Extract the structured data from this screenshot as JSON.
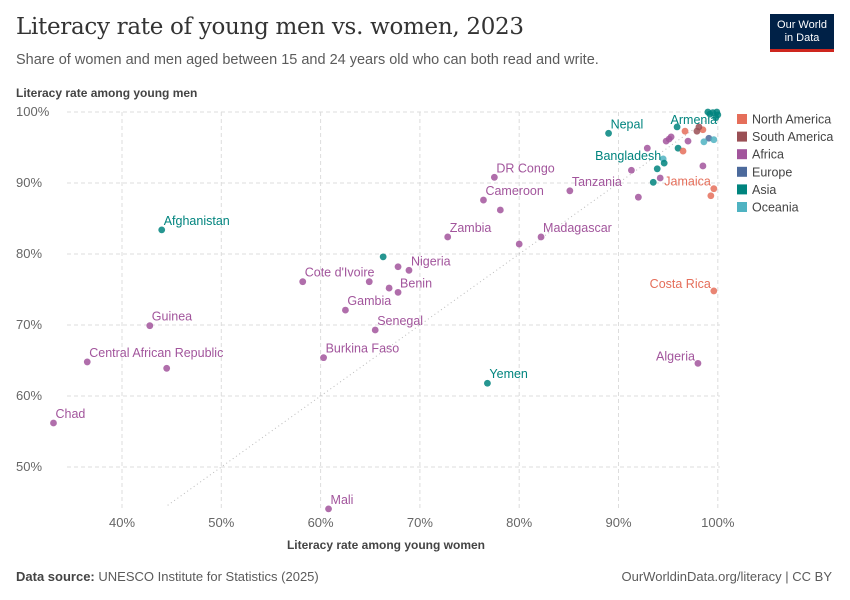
{
  "header": {
    "title": "Literacy rate of young men vs. women, 2023",
    "subtitle": "Share of women and men aged between 15 and 24 years old who can both read and write.",
    "logo_line1": "Our World",
    "logo_line2": "in Data"
  },
  "footer": {
    "source_label": "Data source:",
    "source": "UNESCO Institute for Statistics (2025)",
    "right": "OurWorldinData.org/literacy | CC BY"
  },
  "chart_data": {
    "type": "scatter",
    "title": "Literacy rate of young men vs. women, 2023",
    "xlabel": "Literacy rate among young women",
    "ylabel": "Literacy rate among young men",
    "xlim": [
      32.5,
      101
    ],
    "ylim": [
      44,
      100
    ],
    "x_ticks": [
      {
        "v": 40,
        "label": "40%"
      },
      {
        "v": 50,
        "label": "50%"
      },
      {
        "v": 60,
        "label": "60%"
      },
      {
        "v": 70,
        "label": "70%"
      },
      {
        "v": 80,
        "label": "80%"
      },
      {
        "v": 90,
        "label": "90%"
      },
      {
        "v": 100,
        "label": "100%"
      }
    ],
    "y_ticks": [
      {
        "v": 50,
        "label": "50%"
      },
      {
        "v": 60,
        "label": "60%"
      },
      {
        "v": 70,
        "label": "70%"
      },
      {
        "v": 80,
        "label": "80%"
      },
      {
        "v": 90,
        "label": "90%"
      },
      {
        "v": 100,
        "label": "100%"
      }
    ],
    "grid": true,
    "reference_line": "y = x",
    "legend_position": "right",
    "legend": [
      {
        "name": "North America",
        "color": "#e56e5a"
      },
      {
        "name": "South America",
        "color": "#9a4f55"
      },
      {
        "name": "Africa",
        "color": "#a2559c"
      },
      {
        "name": "Europe",
        "color": "#4c6a9c"
      },
      {
        "name": "Asia",
        "color": "#00847e"
      },
      {
        "name": "Oceania",
        "color": "#4fb3c2"
      }
    ],
    "points": [
      {
        "label": "Chad",
        "region": "Africa",
        "x": 33.1,
        "y": 56.2
      },
      {
        "label": "Central African Republic",
        "region": "Africa",
        "x": 36.5,
        "y": 64.8
      },
      {
        "label": "Guinea",
        "region": "Africa",
        "x": 42.8,
        "y": 69.9
      },
      {
        "label": "",
        "region": "Africa",
        "x": 44.5,
        "y": 63.9
      },
      {
        "label": "Afghanistan",
        "region": "Asia",
        "x": 44.0,
        "y": 83.4
      },
      {
        "label": "Cote d'Ivoire",
        "region": "Africa",
        "x": 58.2,
        "y": 76.1
      },
      {
        "label": "Gambia",
        "region": "Africa",
        "x": 62.5,
        "y": 72.1
      },
      {
        "label": "Burkina Faso",
        "region": "Africa",
        "x": 60.3,
        "y": 65.4
      },
      {
        "label": "Senegal",
        "region": "Africa",
        "x": 65.5,
        "y": 69.3
      },
      {
        "label": "Mali",
        "region": "Africa",
        "x": 60.8,
        "y": 44.1
      },
      {
        "label": "",
        "region": "Africa",
        "x": 66.9,
        "y": 75.2
      },
      {
        "label": "Benin",
        "region": "Africa",
        "x": 67.8,
        "y": 74.6
      },
      {
        "label": "",
        "region": "Africa",
        "x": 64.9,
        "y": 76.1
      },
      {
        "label": "",
        "region": "Africa",
        "x": 67.8,
        "y": 78.2
      },
      {
        "label": "Nigeria",
        "region": "Africa",
        "x": 68.9,
        "y": 77.7
      },
      {
        "label": "",
        "region": "Asia",
        "x": 66.3,
        "y": 79.6
      },
      {
        "label": "Zambia",
        "region": "Africa",
        "x": 72.8,
        "y": 82.4
      },
      {
        "label": "Cameroon",
        "region": "Africa",
        "x": 76.4,
        "y": 87.6
      },
      {
        "label": "DR Congo",
        "region": "Africa",
        "x": 77.5,
        "y": 90.8
      },
      {
        "label": "",
        "region": "Africa",
        "x": 78.1,
        "y": 86.2
      },
      {
        "label": "",
        "region": "Africa",
        "x": 80.0,
        "y": 81.4
      },
      {
        "label": "Madagascar",
        "region": "Africa",
        "x": 82.2,
        "y": 82.4
      },
      {
        "label": "Tanzania",
        "region": "Africa",
        "x": 85.1,
        "y": 88.9
      },
      {
        "label": "Yemen",
        "region": "Asia",
        "x": 76.8,
        "y": 61.8
      },
      {
        "label": "Nepal",
        "region": "Asia",
        "x": 89.0,
        "y": 97.0
      },
      {
        "label": "Armenia",
        "region": "Asia",
        "x": 95.9,
        "y": 97.9
      },
      {
        "label": "",
        "region": "North America",
        "x": 96.7,
        "y": 97.3
      },
      {
        "label": "",
        "region": "North America",
        "x": 98.5,
        "y": 97.5
      },
      {
        "label": "",
        "region": "South America",
        "x": 97.9,
        "y": 97.3
      },
      {
        "label": "",
        "region": "South America",
        "x": 98.1,
        "y": 97.9
      },
      {
        "label": "",
        "region": "Asia",
        "x": 99.0,
        "y": 100
      },
      {
        "label": "",
        "region": "Asia",
        "x": 99.5,
        "y": 99.9
      },
      {
        "label": "",
        "region": "Asia",
        "x": 99.9,
        "y": 100
      },
      {
        "label": "",
        "region": "Asia",
        "x": 100,
        "y": 99.6
      },
      {
        "label": "",
        "region": "Asia",
        "x": 99.8,
        "y": 99.2
      },
      {
        "label": "",
        "region": "Asia",
        "x": 99.2,
        "y": 99.7
      },
      {
        "label": "",
        "region": "Africa",
        "x": 92.9,
        "y": 94.9
      },
      {
        "label": "",
        "region": "Africa",
        "x": 94.8,
        "y": 95.9
      },
      {
        "label": "",
        "region": "Africa",
        "x": 95.1,
        "y": 96.2
      },
      {
        "label": "",
        "region": "Africa",
        "x": 95.3,
        "y": 96.5
      },
      {
        "label": "",
        "region": "Africa",
        "x": 97.0,
        "y": 95.9
      },
      {
        "label": "",
        "region": "Asia",
        "x": 96.0,
        "y": 94.9
      },
      {
        "label": "",
        "region": "North America",
        "x": 96.5,
        "y": 94.5
      },
      {
        "label": "",
        "region": "Europe",
        "x": 99.1,
        "y": 96.3
      },
      {
        "label": "",
        "region": "Oceania",
        "x": 98.6,
        "y": 95.8
      },
      {
        "label": "",
        "region": "Oceania",
        "x": 99.6,
        "y": 96.1
      },
      {
        "label": "",
        "region": "Oceania",
        "x": 94.5,
        "y": 93.4
      },
      {
        "label": "Bangladesh",
        "region": "Asia",
        "x": 94.6,
        "y": 92.8
      },
      {
        "label": "",
        "region": "Africa",
        "x": 91.3,
        "y": 91.8
      },
      {
        "label": "",
        "region": "Asia",
        "x": 93.9,
        "y": 92.0
      },
      {
        "label": "",
        "region": "Asia",
        "x": 93.5,
        "y": 90.1
      },
      {
        "label": "",
        "region": "Africa",
        "x": 94.2,
        "y": 90.7
      },
      {
        "label": "",
        "region": "Africa",
        "x": 98.5,
        "y": 92.4
      },
      {
        "label": "",
        "region": "Africa",
        "x": 92.0,
        "y": 88.0
      },
      {
        "label": "Jamaica",
        "region": "North America",
        "x": 99.6,
        "y": 89.2
      },
      {
        "label": "",
        "region": "North America",
        "x": 99.3,
        "y": 88.2
      },
      {
        "label": "Costa Rica",
        "region": "North America",
        "x": 99.6,
        "y": 74.8
      },
      {
        "label": "Algeria",
        "region": "Africa",
        "x": 98.0,
        "y": 64.6
      }
    ]
  }
}
